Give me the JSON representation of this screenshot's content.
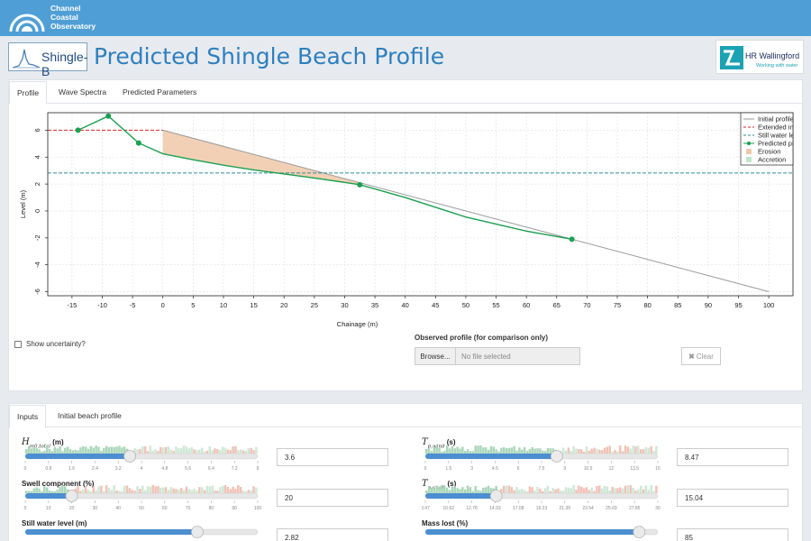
{
  "brand": {
    "line1": "Channel",
    "line2": "Coastal",
    "line3": "Observatory"
  },
  "app_logo": {
    "text": "Shingle-B"
  },
  "page_title": "Predicted Shingle Beach Profile",
  "partner_logo": {
    "name": "HR Wallingford",
    "tagline": "Working with water"
  },
  "top_tabs": [
    "Profile",
    "Wave Spectra",
    "Predicted Parameters"
  ],
  "chart_data": {
    "type": "line",
    "xlabel": "Chainage (m)",
    "ylabel": "Level (m)",
    "xlim": [
      -19,
      104
    ],
    "ylim": [
      -6.3,
      7.3
    ],
    "xticks": [
      -15,
      -10,
      -5,
      0,
      5,
      10,
      15,
      20,
      25,
      30,
      35,
      40,
      45,
      50,
      55,
      60,
      65,
      70,
      75,
      80,
      85,
      90,
      95,
      100
    ],
    "xtick_labels": [
      "-15",
      "-10",
      "-5",
      "0",
      "5",
      "10",
      "15",
      "20",
      "25",
      "30",
      "35",
      "40",
      "45",
      "50",
      "55",
      "60",
      "65",
      "70",
      "75",
      "80",
      "85",
      "90",
      "95",
      "100"
    ],
    "yticks": [
      -6,
      -4,
      -2,
      0,
      2,
      4,
      6
    ],
    "ytick_labels": [
      "-6",
      "-4",
      "-2",
      "0",
      "2",
      "4",
      "6"
    ],
    "grid": true,
    "legend_position": "top-right",
    "series": [
      {
        "name": "Initial profile",
        "color": "#9a9a9a",
        "style": "solid",
        "x": [
          0,
          100
        ],
        "y": [
          6,
          -6
        ]
      },
      {
        "name": "Extended initial",
        "color": "#d62728",
        "style": "dashed",
        "x": [
          -19,
          0
        ],
        "y": [
          6,
          6
        ]
      },
      {
        "name": "Still water level",
        "color": "#2f8a9a",
        "style": "dashed",
        "x": [
          -19,
          104
        ],
        "y": [
          2.82,
          2.82
        ]
      },
      {
        "name": "Predicted profile",
        "color": "#1aa050",
        "style": "solid",
        "x": [
          -14,
          -9,
          -4,
          0,
          5,
          10,
          15,
          20,
          25,
          30,
          32.5,
          40,
          50,
          60,
          67.5
        ],
        "y": [
          6,
          7.05,
          5.05,
          4.25,
          3.8,
          3.4,
          3.05,
          2.75,
          2.45,
          2.12,
          1.95,
          1.0,
          -0.45,
          -1.5,
          -2.1
        ],
        "markers": [
          [
            -14,
            6
          ],
          [
            -9,
            7.05
          ],
          [
            -4,
            5.05
          ],
          [
            32.5,
            1.95
          ],
          [
            67.5,
            -2.1
          ]
        ]
      }
    ],
    "erosion_area": {
      "name": "Erosion",
      "color": "#f0c8a8",
      "x": [
        0,
        5,
        10,
        15,
        20,
        25,
        30,
        32.5
      ],
      "upper": [
        6,
        5.4,
        4.8,
        4.2,
        3.6,
        3.0,
        2.4,
        2.1
      ],
      "lower": [
        4.25,
        3.8,
        3.4,
        3.05,
        2.75,
        2.45,
        2.12,
        1.95
      ]
    },
    "accretion_area": {
      "name": "Accretion",
      "color": "#bfe6cd"
    },
    "legend_labels": [
      "Initial profile",
      "Extended initi",
      "Still water lev",
      "Predicted pro",
      "Erosion",
      "Accretion"
    ]
  },
  "uncertainty": {
    "label": "Show uncertainty?"
  },
  "observed": {
    "label": "Observed profile (for comparison only)",
    "browse": "Browse...",
    "placeholder": "No file selected",
    "clear": "Clear"
  },
  "bottom_tabs": [
    "Inputs",
    "Initial beach profile"
  ],
  "inputs": {
    "h_label": "H",
    "h_sub": "m0,total",
    "h_unit": " (m)",
    "h_value": "3.6",
    "h_ticks": [
      "0",
      "0.8",
      "1.6",
      "2.4",
      "3.2",
      "4",
      "4.8",
      "5.6",
      "6.4",
      "7.2",
      "8"
    ],
    "h_fraction": 0.45,
    "swell_label": "Swell component (%)",
    "swell_value": "20",
    "swell_ticks": [
      "0",
      "10",
      "20",
      "30",
      "40",
      "50",
      "60",
      "70",
      "80",
      "90",
      "100"
    ],
    "swell_fraction": 0.2,
    "swl_label": "Still water level (m)",
    "swl_value": "2.82",
    "swl_fraction": 0.74,
    "tw_label": "T",
    "tw_sub": "p,wind",
    "tw_unit": " (s)",
    "tw_value": "8.47",
    "tw_ticks": [
      "0",
      "1.5",
      "3",
      "4.5",
      "6",
      "7.5",
      "9",
      "10.5",
      "12",
      "13.5",
      "15"
    ],
    "tw_fraction": 0.565,
    "ts_label": "T",
    "ts_sub": "p,swell",
    "ts_unit": " (s)",
    "ts_value": "15.04",
    "ts_ticks": [
      "8.47",
      "10.62",
      "12.78",
      "14.93",
      "17.08",
      "19.23",
      "21.39",
      "23.54",
      "25.69",
      "27.85",
      "30"
    ],
    "ts_fraction": 0.305,
    "mass_label": "Mass lost (%)",
    "mass_value": "85",
    "mass_fraction": 0.92
  }
}
